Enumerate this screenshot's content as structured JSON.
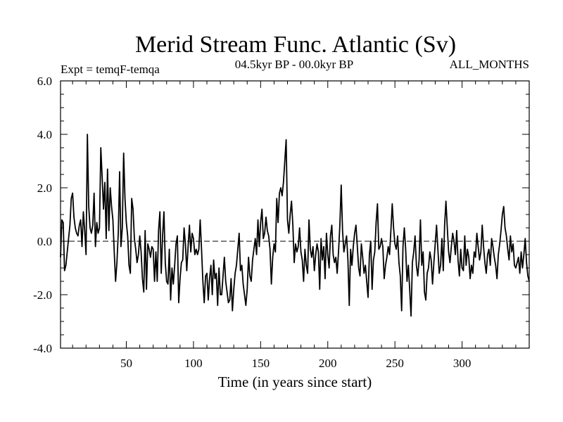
{
  "chart_data": {
    "type": "line",
    "title": "Merid Stream Func. Atlantic (Sv)",
    "subtitle_left": "Expt = temqF-temqa",
    "subtitle_center": "04.5kyr BP - 00.0kyr BP",
    "subtitle_right": "ALL_MONTHS",
    "xlabel": "Time (in years since start)",
    "ylabel": "",
    "xlim": [
      1,
      350
    ],
    "ylim": [
      -4,
      6
    ],
    "x_ticks": [
      50,
      100,
      150,
      200,
      250,
      300
    ],
    "x_tick_labels": [
      "50",
      "100",
      "150",
      "200",
      "250",
      "300"
    ],
    "y_ticks": [
      -4,
      -2,
      0,
      2,
      4,
      6
    ],
    "y_tick_labels": [
      "-4.0",
      "-2.0",
      "0.0",
      "2.0",
      "4.0",
      "6.0"
    ],
    "reference_line": 0,
    "series": [
      {
        "name": "Expt = temqF-temqa",
        "x_start": 1,
        "x_step": 1,
        "values": [
          -0.6,
          0.8,
          0.7,
          -1.1,
          -0.9,
          -0.4,
          0.1,
          0.6,
          1.6,
          1.8,
          0.9,
          0.5,
          0.3,
          0.2,
          0.6,
          0.8,
          -0.2,
          1.1,
          0.4,
          -0.5,
          4.0,
          1.3,
          0.5,
          0.3,
          0.6,
          1.8,
          -0.2,
          0.7,
          0.3,
          0.5,
          3.5,
          2.4,
          1.2,
          2.2,
          0.1,
          2.7,
          0.4,
          2.0,
          1.3,
          0.8,
          -0.4,
          -1.5,
          -0.8,
          0.3,
          2.6,
          -0.2,
          0.5,
          3.3,
          1.6,
          0.7,
          0.2,
          -0.9,
          -1.2,
          1.6,
          1.2,
          0.1,
          -0.3,
          -0.8,
          -0.5,
          0.2,
          -0.4,
          -1.4,
          -1.9,
          0.4,
          -1.8,
          -0.1,
          -0.3,
          -0.6,
          -0.2,
          -0.3,
          -1.5,
          -0.4,
          -1.5,
          0.4,
          1.1,
          -1.2,
          0.2,
          1.1,
          -0.8,
          -1.5,
          -1.6,
          -0.3,
          -2.2,
          -1.0,
          -1.6,
          -0.9,
          -0.1,
          0.2,
          -2.3,
          -1.4,
          -0.8,
          -0.7,
          0.5,
          -0.1,
          -1.1,
          -0.2,
          0.6,
          -0.4,
          0.3,
          0.1,
          -0.5,
          -0.3,
          -0.5,
          -0.3,
          0.8,
          -0.3,
          -1.5,
          -2.3,
          -1.3,
          -1.2,
          -2.2,
          -1.4,
          -0.9,
          -2.0,
          -0.7,
          -1.4,
          -1.2,
          -2.4,
          -1.0,
          -2.0,
          -2.0,
          -1.3,
          -0.6,
          -1.5,
          -1.9,
          -2.3,
          -2.2,
          -1.4,
          -2.6,
          -1.8,
          -1.2,
          -0.9,
          -0.3,
          0.3,
          -1.1,
          -0.9,
          -1.6,
          -2.0,
          -2.4,
          -1.8,
          -0.6,
          -1.3,
          -1.5,
          -0.7,
          -0.3,
          0.1,
          -0.5,
          0.8,
          -0.2,
          0.7,
          1.2,
          0.1,
          0.3,
          0.9,
          0.4,
          0.2,
          -0.3,
          -1.6,
          -0.6,
          -0.1,
          -0.4,
          1.6,
          0.7,
          1.8,
          2.0,
          1.7,
          2.2,
          3.0,
          3.8,
          0.8,
          0.3,
          1.0,
          1.5,
          0.6,
          -0.8,
          -0.1,
          -0.4,
          -0.2,
          0.5,
          -0.4,
          -0.7,
          -1.5,
          -0.3,
          -0.9,
          -1.2,
          0.8,
          -0.3,
          -0.6,
          -0.2,
          -1.1,
          -0.5,
          -0.1,
          -0.4,
          -1.8,
          0.1,
          -0.7,
          -0.2,
          -1.4,
          0.3,
          -0.5,
          -1.0,
          0.2,
          0.6,
          -0.5,
          -0.8,
          -0.6,
          -1.2,
          -0.4,
          0.6,
          2.1,
          0.4,
          -0.4,
          -0.1,
          0.2,
          -0.7,
          -2.4,
          -0.3,
          -0.9,
          -0.2,
          0.3,
          0.6,
          -0.2,
          -1.0,
          -1.3,
          -0.1,
          -0.6,
          -1.2,
          -0.9,
          -1.5,
          -2.1,
          -0.5,
          0.0,
          -1.8,
          -0.7,
          -0.4,
          0.7,
          1.4,
          -0.3,
          -0.2,
          0.1,
          -0.2,
          -1.4,
          -0.9,
          -0.6,
          -0.2,
          -0.5,
          0.4,
          1.4,
          0.5,
          -0.1,
          -0.3,
          0.2,
          -0.8,
          -1.3,
          -2.6,
          -0.2,
          0.5,
          -0.3,
          -1.5,
          -0.9,
          -1.8,
          -2.8,
          -0.8,
          -0.4,
          0.2,
          -0.9,
          -1.3,
          -0.7,
          0.8,
          -0.9,
          -0.4,
          -1.9,
          -2.2,
          -1.2,
          -1.0,
          -0.4,
          -0.7,
          -1.6,
          -0.8,
          -0.1,
          0.6,
          -0.3,
          -1.2,
          -0.9,
          0.1,
          -1.1,
          0.6,
          1.5,
          0.5,
          -0.4,
          -0.8,
          -0.2,
          0.3,
          0.0,
          -0.5,
          0.4,
          -0.7,
          -1.3,
          -0.3,
          -1.0,
          -1.1,
          0.2,
          -0.9,
          -0.3,
          -0.6,
          -1.4,
          -0.9,
          -1.2,
          -0.4,
          -0.6,
          0.3,
          -0.2,
          -0.7,
          -0.4,
          0.6,
          -0.2,
          -0.8,
          -1.2,
          -0.5,
          -0.3,
          -0.9,
          0.1,
          -0.2,
          -0.6,
          -0.9,
          -1.4,
          -0.5,
          -0.1,
          0.4,
          1.0,
          1.3,
          0.5,
          0.2,
          -0.3,
          -0.7,
          0.2,
          -0.4,
          -0.1,
          -0.9,
          -1.0,
          -0.8,
          -0.6,
          -1.2,
          -0.4,
          -1.0,
          -0.5,
          0.1,
          -0.8,
          -1.3,
          -1.5
        ]
      }
    ]
  }
}
